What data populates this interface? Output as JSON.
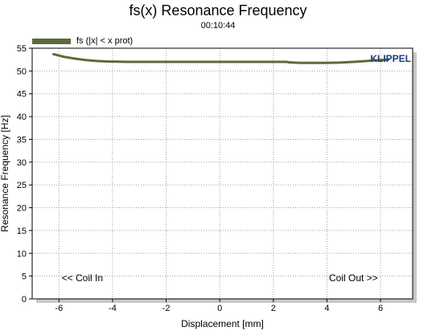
{
  "chart_data": {
    "type": "line",
    "title": "fs(x) Resonance Frequency",
    "subtitle": "00:10:44",
    "xlabel": "Displacement [mm]",
    "ylabel": "Resonance Frequency [Hz]",
    "xlim": [
      -7,
      7.2
    ],
    "ylim": [
      0,
      55
    ],
    "x_ticks": [
      -6,
      -4,
      -2,
      0,
      2,
      4,
      6
    ],
    "y_ticks": [
      0,
      5,
      10,
      15,
      20,
      25,
      30,
      35,
      40,
      45,
      50,
      55
    ],
    "grid": true,
    "legend_position": "top-left",
    "series": [
      {
        "name": "fs (|x| < x prot)",
        "color": "#5a6b3a",
        "x": [
          -6.2,
          -5.8,
          -5.4,
          -5.0,
          -4.6,
          -4.2,
          -3.8,
          -3.4,
          -3.0,
          -2.0,
          -1.0,
          0.0,
          1.0,
          2.0,
          2.5,
          2.6,
          3.0,
          4.0,
          4.5,
          5.0,
          5.5,
          6.0,
          6.3
        ],
        "y": [
          53.7,
          53.1,
          52.7,
          52.4,
          52.2,
          52.1,
          52.05,
          52.0,
          52.0,
          52.0,
          52.0,
          52.0,
          52.0,
          52.0,
          52.0,
          51.9,
          51.8,
          51.8,
          51.85,
          52.0,
          52.2,
          52.4,
          52.5
        ]
      }
    ],
    "annotations": {
      "brand": "KLIPPEL",
      "left_note": "<< Coil In",
      "right_note": "Coil Out >>"
    }
  },
  "style": {
    "grid_color": "#a0a0a0",
    "frame_color": "#000000",
    "shadow_color": "#c8c8c8",
    "brand_color": "#1f3c78"
  }
}
